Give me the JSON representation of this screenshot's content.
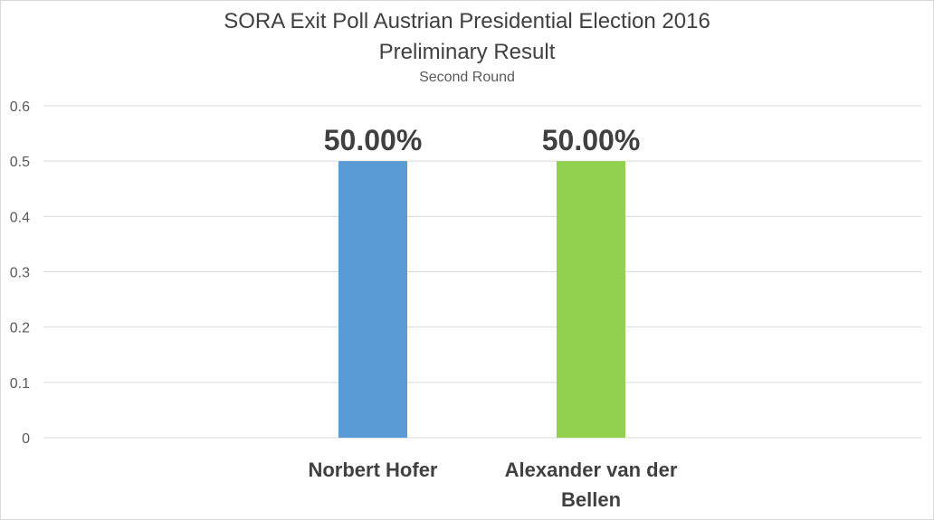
{
  "chart_data": {
    "type": "bar",
    "title": "SORA Exit Poll Austrian Presidential Election 2016",
    "title_line2": "Preliminary Result",
    "subtitle": "Second Round",
    "categories": [
      "Norbert Hofer",
      "Alexander van der Bellen"
    ],
    "category_lines": [
      [
        "Norbert Hofer"
      ],
      [
        "Alexander van der",
        "Bellen"
      ]
    ],
    "values": [
      0.5,
      0.5
    ],
    "data_labels": [
      "50.00%",
      "50.00%"
    ],
    "colors": [
      "#5b9bd5",
      "#92d050"
    ],
    "ylim": [
      0,
      0.6
    ],
    "yticks": [
      "0",
      "0.1",
      "0.2",
      "0.3",
      "0.4",
      "0.5",
      "0.6"
    ],
    "grid": true,
    "xlabel": "",
    "ylabel": ""
  }
}
